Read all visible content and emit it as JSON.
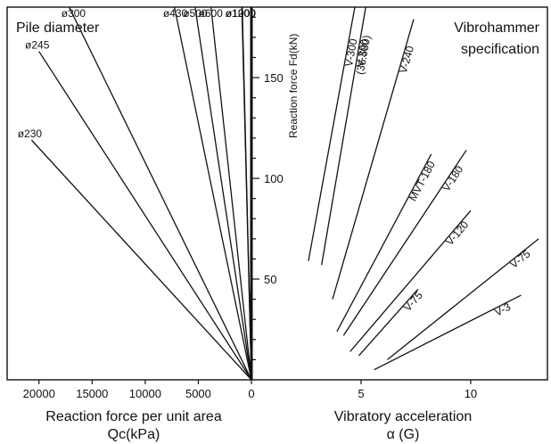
{
  "chart_data": [
    {
      "type": "line",
      "panel": "left",
      "title": "Pile diameter",
      "xlabel_line1": "Reaction force per unit area",
      "xlabel_line2": "Qc(kPa)",
      "x_reversed": true,
      "xlim": [
        0,
        23000
      ],
      "ylim": [
        0,
        185
      ],
      "xticks": [
        20000,
        15000,
        10000,
        5000,
        0
      ],
      "series": [
        {
          "name": "ø230",
          "x": [
            0,
            20700
          ],
          "y": [
            0,
            119
          ]
        },
        {
          "name": "ø245",
          "x": [
            0,
            20000
          ],
          "y": [
            0,
            163
          ]
        },
        {
          "name": "ø300",
          "x": [
            0,
            17900
          ],
          "y": [
            0,
            193
          ]
        },
        {
          "name": "ø430",
          "x": [
            0,
            9600
          ],
          "y": [
            0,
            245
          ]
        },
        {
          "name": "ø500",
          "x": [
            0,
            7200
          ],
          "y": [
            0,
            251
          ]
        },
        {
          "name": "ø600",
          "x": [
            0,
            5000
          ],
          "y": [
            0,
            243
          ]
        },
        {
          "name": "ø1000",
          "x": [
            0,
            1400
          ],
          "y": [
            0,
            300
          ]
        },
        {
          "name": "ø1200",
          "x": [
            0,
            1600
          ],
          "y": [
            0,
            328
          ]
        }
      ]
    },
    {
      "type": "line",
      "panel": "right",
      "title_line1": "Vibrohammer",
      "title_line2": "specification",
      "ylabel": "Reaction force Fd(kN)",
      "xlabel_line1": "Vibratory acceleration",
      "xlabel_line2": "α (G)",
      "xlim": [
        0,
        13.5
      ],
      "ylim": [
        0,
        185
      ],
      "xticks": [
        0,
        5,
        10
      ],
      "yticks": [
        50,
        100,
        150
      ],
      "series": [
        {
          "name": "V-3",
          "label_lines": [
            "V-3"
          ],
          "x": [
            5.6,
            12.3
          ],
          "y": [
            5,
            42
          ]
        },
        {
          "name": "V-75",
          "label_lines": [
            "V-75"
          ],
          "x": [
            6.2,
            13.1
          ],
          "y": [
            10,
            70
          ]
        },
        {
          "name": "V-75",
          "label_lines": [
            "V-75"
          ],
          "x": [
            4.9,
            7.6
          ],
          "y": [
            12,
            45
          ]
        },
        {
          "name": "V-120",
          "label_lines": [
            "V-120"
          ],
          "x": [
            4.5,
            10.0
          ],
          "y": [
            14,
            84
          ]
        },
        {
          "name": "V-180",
          "label_lines": [
            "V-180"
          ],
          "x": [
            4.2,
            9.8
          ],
          "y": [
            22,
            114
          ]
        },
        {
          "name": "MVT-180",
          "label_lines": [
            "MVT-180"
          ],
          "x": [
            3.9,
            8.2
          ],
          "y": [
            24,
            112
          ]
        },
        {
          "name": "V-240",
          "label_lines": [
            "V-240"
          ],
          "x": [
            3.7,
            7.4
          ],
          "y": [
            40,
            179
          ]
        },
        {
          "name": "V-300",
          "label_lines": [
            "V-300"
          ],
          "x": [
            3.2,
            5.7
          ],
          "y": [
            57,
            216
          ]
        },
        {
          "name": "V-300 (36.580)",
          "label_lines": [
            "V-300",
            "(36.580)"
          ],
          "x": [
            2.6,
            4.8
          ],
          "y": [
            59,
            190
          ]
        }
      ]
    }
  ]
}
